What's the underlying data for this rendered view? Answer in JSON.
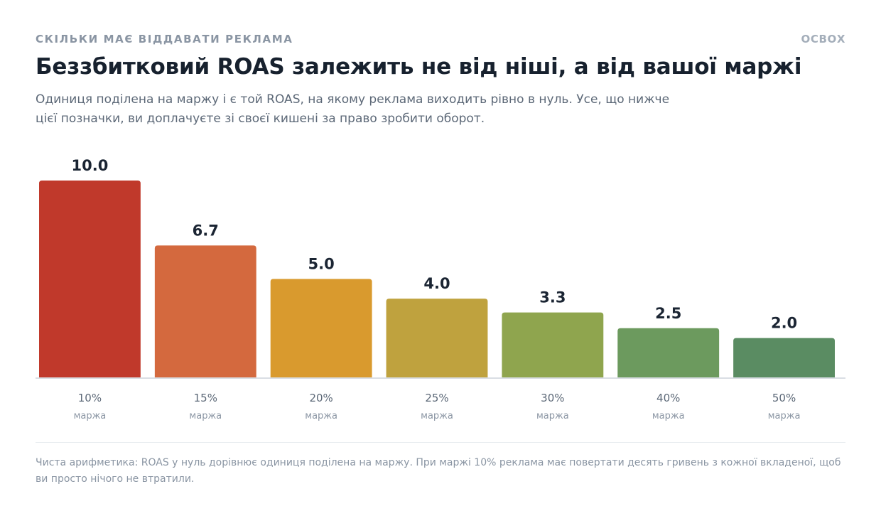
{
  "header": {
    "eyebrow": "Скільки має віддавати реклама",
    "brand": "ОСВОХ",
    "title": "Беззбитковий ROAS залежить не від ніші, а від вашої маржі",
    "subtitle": "Одиниця поділена на маржу і є той ROAS, на якому реклама виходить рівно в нуль. Усе, що нижче цієї позначки, ви доплачуєте зі своєї кишені за право зробити оборот."
  },
  "footnote": "Чиста арифметика: ROAS у нуль дорівнює одиниця поділена на маржу. При маржі 10% реклама має повертати десять гривень з кожної вкладеної, щоб ви просто нічого не втратили.",
  "chart_data": {
    "type": "bar",
    "categories": [
      "10%",
      "15%",
      "20%",
      "25%",
      "30%",
      "40%",
      "50%"
    ],
    "category_sublabel": "маржа",
    "values": [
      10.0,
      6.7,
      5.0,
      4.0,
      3.3,
      2.5,
      2.0
    ],
    "value_labels": [
      "10.0",
      "6.7",
      "5.0",
      "4.0",
      "3.3",
      "2.5",
      "2.0"
    ],
    "colors": [
      "#c0392b",
      "#d4693e",
      "#d99a2e",
      "#bfa23e",
      "#8fa54e",
      "#6c9a5e",
      "#5a8c62"
    ],
    "ylim": [
      0,
      10
    ],
    "grid": false,
    "legend": "none"
  }
}
